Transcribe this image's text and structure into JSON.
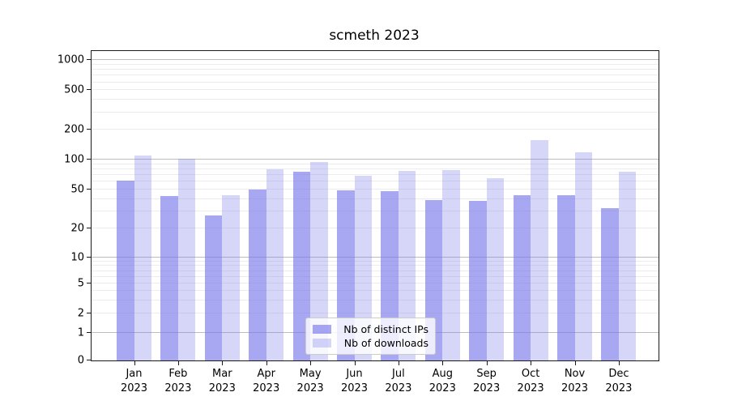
{
  "title": "scmeth 2023",
  "chart_data": {
    "type": "bar",
    "title": "scmeth 2023",
    "yscale": "symlog",
    "grid": true,
    "ylim": [
      0,
      1500
    ],
    "y_tick_labels": [
      "0",
      "1",
      "2",
      "5",
      "10",
      "20",
      "50",
      "100",
      "200",
      "500",
      "1000"
    ],
    "x_tick_months": [
      "Jan",
      "Feb",
      "Mar",
      "Apr",
      "May",
      "Jun",
      "Jul",
      "Aug",
      "Sep",
      "Oct",
      "Nov",
      "Dec"
    ],
    "x_tick_year": "2023",
    "legend_position": "lower center",
    "series": [
      {
        "name": "Nb of distinct IPs",
        "color": "rgba(120,120,235,0.65)",
        "values": [
          62,
          43,
          27,
          50,
          75,
          49,
          48,
          39,
          38,
          44,
          44,
          32
        ]
      },
      {
        "name": "Nb of downloads",
        "color": "rgba(120,120,235,0.30)",
        "values": [
          110,
          102,
          44,
          80,
          94,
          69,
          77,
          78,
          65,
          158,
          119,
          76
        ]
      }
    ]
  }
}
